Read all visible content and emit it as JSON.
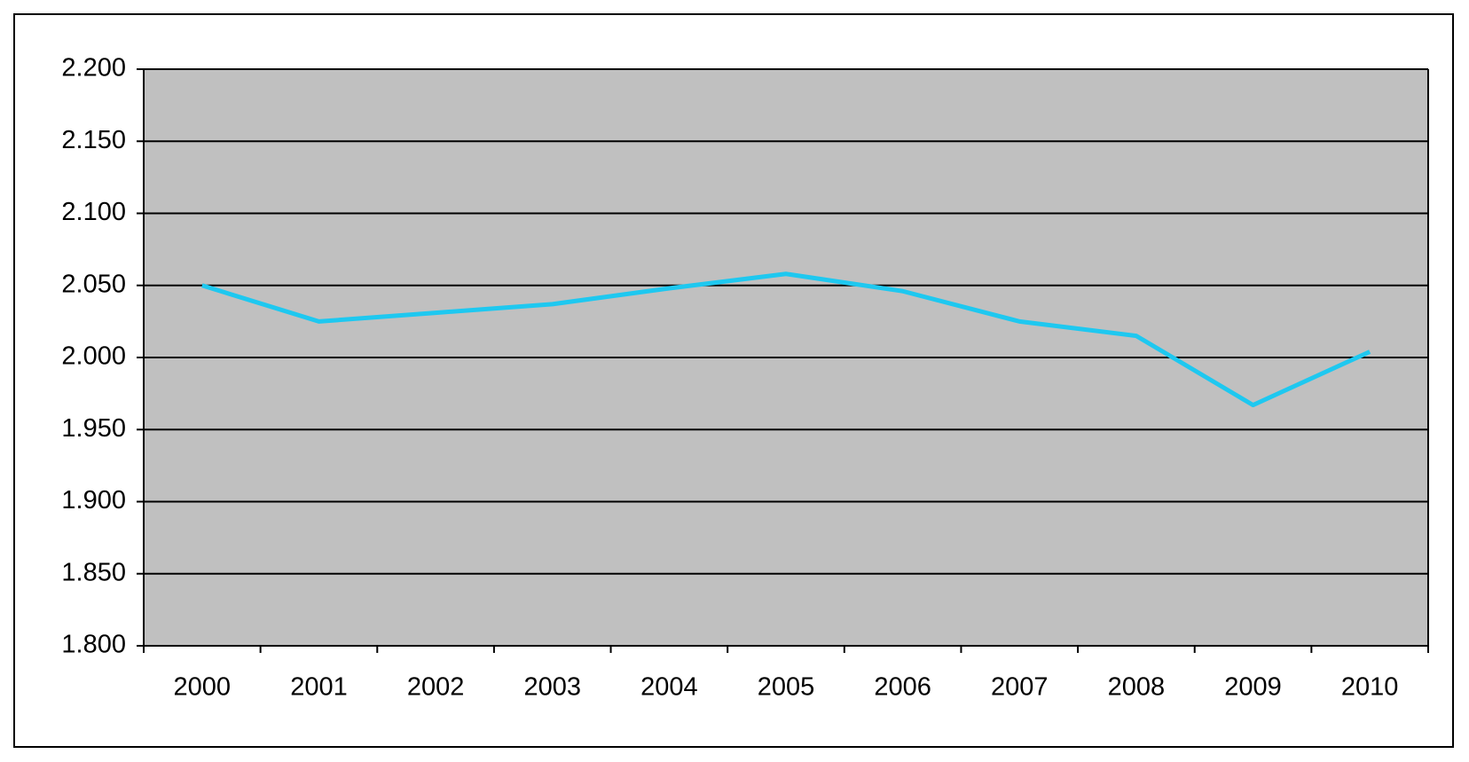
{
  "chart_data": {
    "type": "line",
    "categories": [
      "2000",
      "2001",
      "2002",
      "2003",
      "2004",
      "2005",
      "2006",
      "2007",
      "2008",
      "2009",
      "2010"
    ],
    "values": [
      2.05,
      2.025,
      2.031,
      2.037,
      2.048,
      2.058,
      2.046,
      2.025,
      2.015,
      1.967,
      2.004
    ],
    "color": "#1ec8f0",
    "ylim": [
      1.8,
      2.2
    ],
    "yticks": [
      {
        "value": 1.8,
        "label": "1.800"
      },
      {
        "value": 1.85,
        "label": "1.850"
      },
      {
        "value": 1.9,
        "label": "1.900"
      },
      {
        "value": 1.95,
        "label": "1.950"
      },
      {
        "value": 2.0,
        "label": "2.000"
      },
      {
        "value": 2.05,
        "label": "2.050"
      },
      {
        "value": 2.1,
        "label": "2.100"
      },
      {
        "value": 2.15,
        "label": "2.150"
      },
      {
        "value": 2.2,
        "label": "2.200"
      }
    ],
    "grid": true
  }
}
